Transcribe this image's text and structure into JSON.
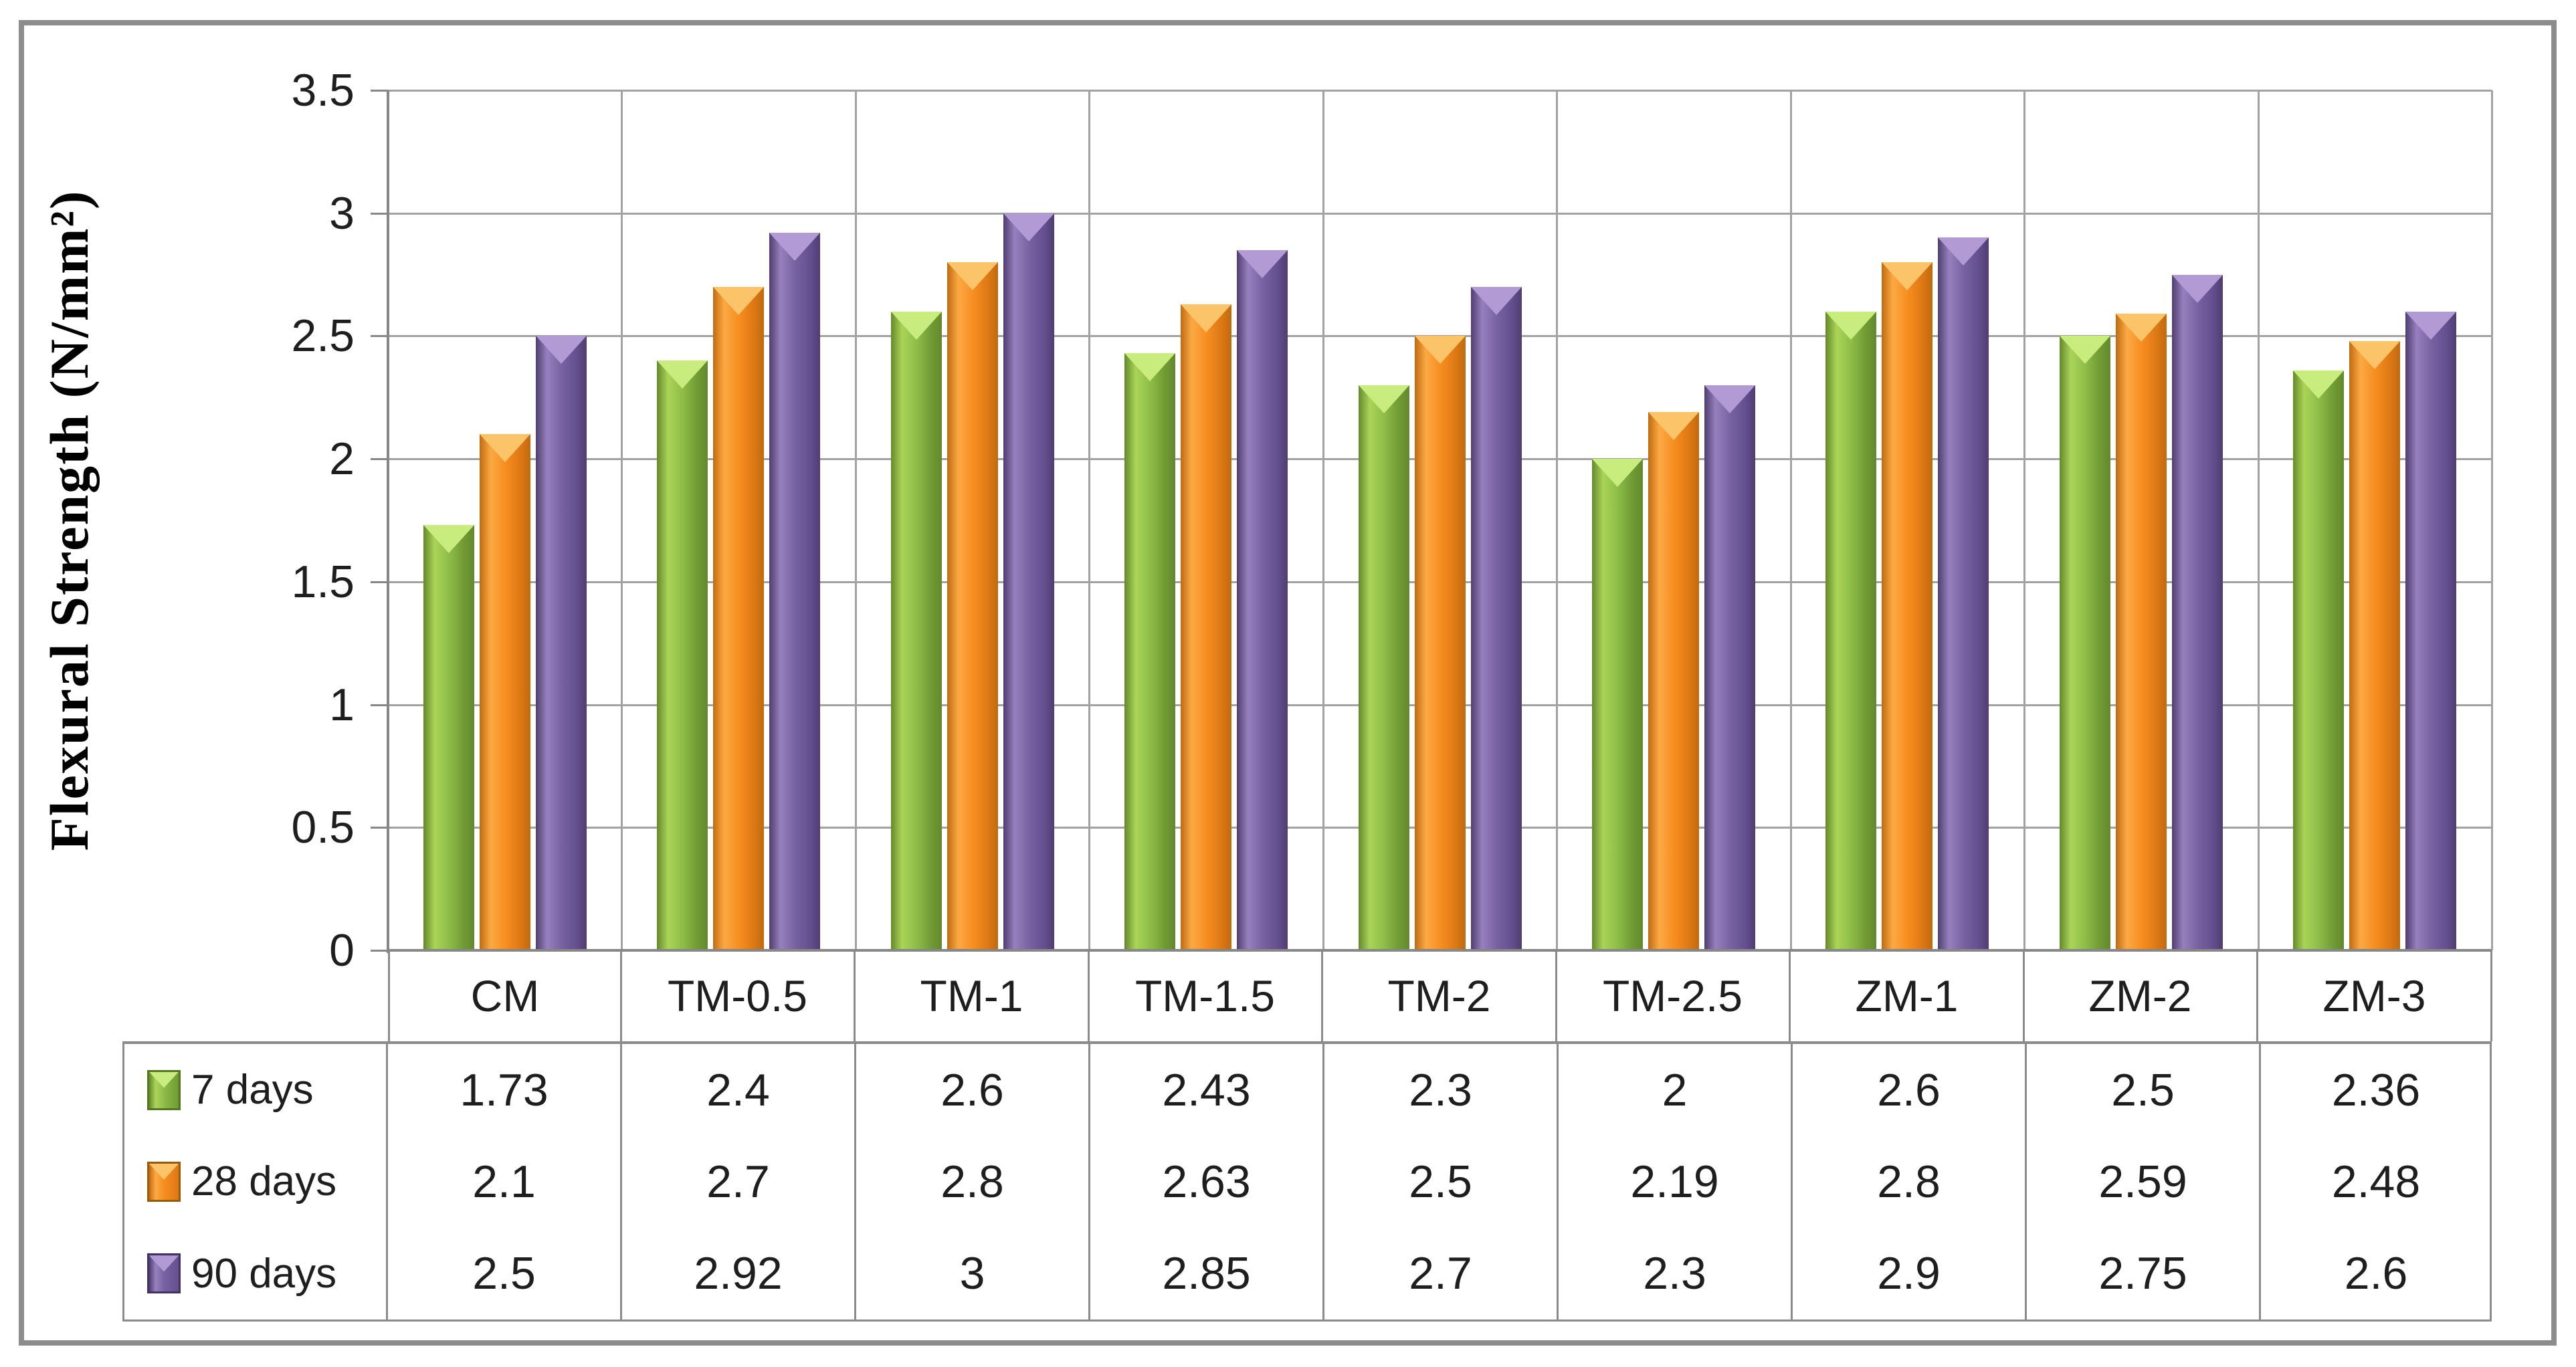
{
  "chart_data": {
    "type": "bar",
    "title": "",
    "xlabel": "",
    "ylabel": "Flexural Strength (N/mm²)",
    "categories": [
      "CM",
      "TM-0.5",
      "TM-1",
      "TM-1.5",
      "TM-2",
      "TM-2.5",
      "ZM-1",
      "ZM-2",
      "ZM-3"
    ],
    "series": [
      {
        "name": "7 days",
        "values": [
          1.73,
          2.4,
          2.6,
          2.43,
          2.3,
          2,
          2.6,
          2.5,
          2.36
        ]
      },
      {
        "name": "28 days",
        "values": [
          2.1,
          2.7,
          2.8,
          2.63,
          2.5,
          2.19,
          2.8,
          2.59,
          2.48
        ]
      },
      {
        "name": "90 days",
        "values": [
          2.5,
          2.92,
          3,
          2.85,
          2.7,
          2.3,
          2.9,
          2.75,
          2.6
        ]
      }
    ],
    "ylim": [
      0,
      3.5
    ],
    "y_ticks": [
      0,
      0.5,
      1,
      1.5,
      2,
      2.5,
      3,
      3.5
    ],
    "grid": true,
    "legend_position": "data-table-left-column",
    "data_table_shown": true
  },
  "colors": {
    "series": [
      {
        "name": "7 days",
        "edge": "#63892b",
        "light": "#aad457",
        "base": "#8cbc47",
        "dark": "#6f9a34",
        "notch": "#c9ec7e",
        "key_border": "#55751f"
      },
      {
        "name": "28 days",
        "edge": "#c06a10",
        "light": "#fba944",
        "base": "#f68d1f",
        "dark": "#dd7814",
        "notch": "#fcc469",
        "key_border": "#9a5a0b"
      },
      {
        "name": "90 days",
        "edge": "#4f3d71",
        "light": "#9680bd",
        "base": "#7661a1",
        "dark": "#645090",
        "notch": "#b29ad4",
        "key_border": "#413263"
      }
    ],
    "gridline": "#a2a2a2",
    "axis": "#878787",
    "table_border": "#8b8b8b",
    "frame": "#8c8c8c",
    "text": "#1e1e1e",
    "background": "#ffffff"
  }
}
